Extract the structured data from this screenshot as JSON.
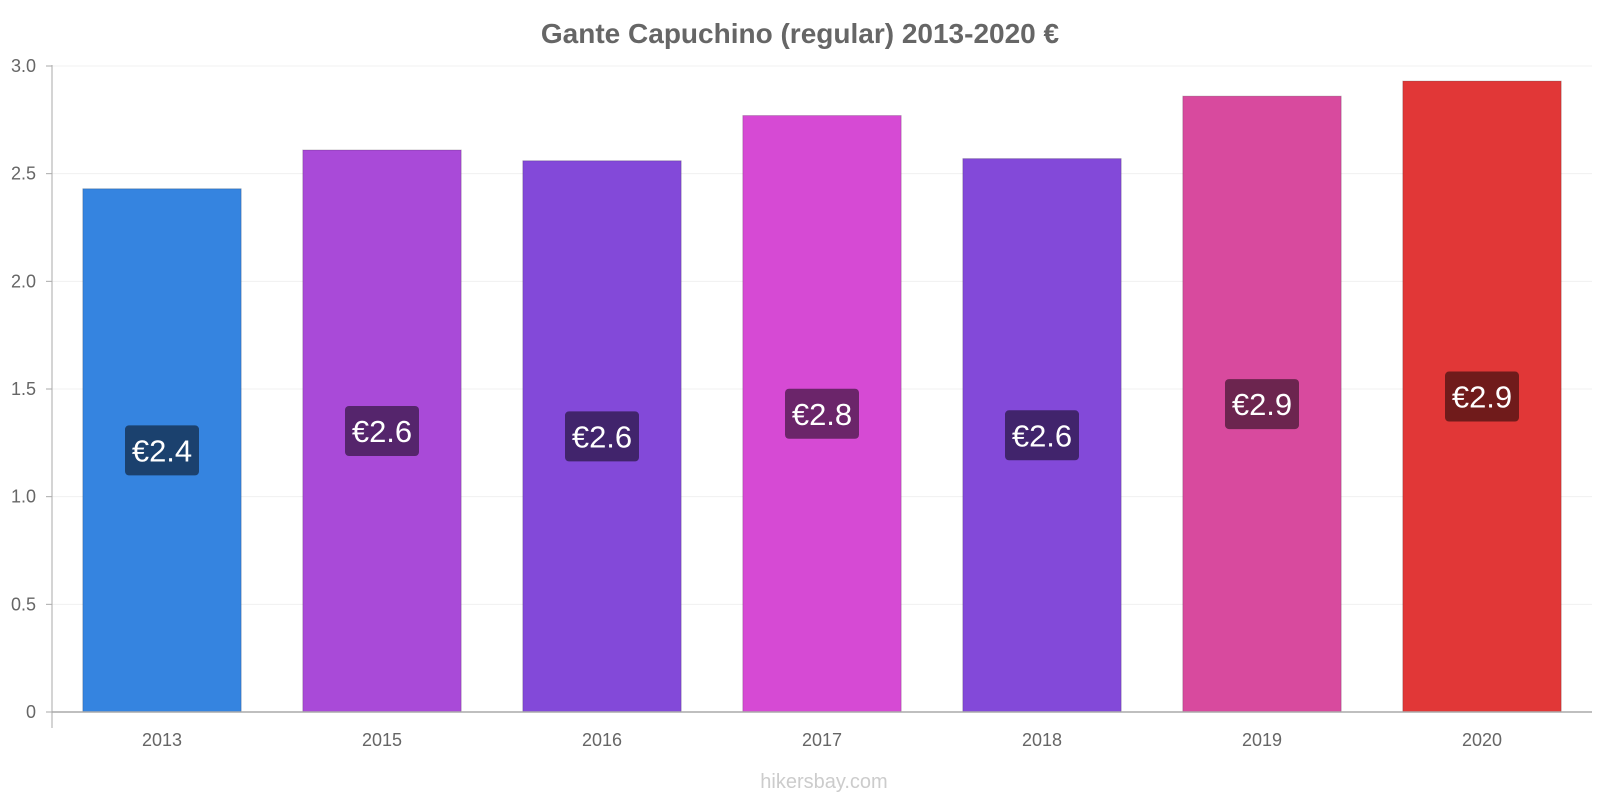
{
  "chart_data": {
    "type": "bar",
    "title": "Gante Capuchino (regular) 2013-2020 €",
    "xlabel": "",
    "ylabel": "",
    "categories": [
      "2013",
      "2015",
      "2016",
      "2017",
      "2018",
      "2019",
      "2020"
    ],
    "values": [
      2.43,
      2.61,
      2.56,
      2.77,
      2.57,
      2.86,
      2.93
    ],
    "data_labels": [
      "€2.4",
      "€2.6",
      "€2.6",
      "€2.8",
      "€2.6",
      "€2.9",
      "€2.9"
    ],
    "ylim": [
      0,
      3.0
    ],
    "yticks": [
      0,
      0.5,
      1.0,
      1.5,
      2.0,
      2.5,
      3.0
    ],
    "ytick_labels": [
      "0",
      "0.5",
      "1.0",
      "1.5",
      "2.0",
      "2.5",
      "3.0"
    ],
    "grid": true,
    "legend": "none",
    "colors": [
      "#3584e0",
      "#a94ad8",
      "#8349d9",
      "#d64ad4",
      "#8349d9",
      "#d84a9e",
      "#e13737"
    ],
    "label_colors": [
      "#1b416e",
      "#55256c",
      "#41246c",
      "#6b256a",
      "#41246c",
      "#6c254f",
      "#701b1b"
    ]
  },
  "watermark": "hikersbay.com"
}
